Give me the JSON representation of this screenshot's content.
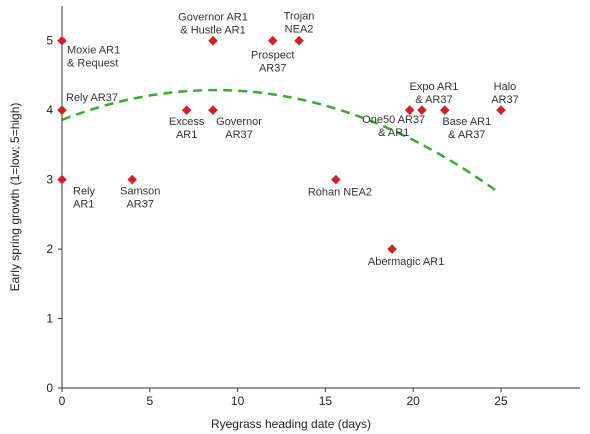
{
  "chart_data": {
    "type": "scatter",
    "xlabel": "Ryegrass heading date (days)",
    "ylabel": "Early spring growth (1=low; 5=high)",
    "xlim": [
      0,
      29.5
    ],
    "ylim": [
      0,
      5.5
    ],
    "xticks": [
      0,
      5,
      10,
      15,
      20,
      25
    ],
    "yticks": [
      0,
      1,
      2,
      3,
      4,
      5
    ],
    "grid": false,
    "marker_color": "#cc2229",
    "trend_color": "#3aaa35",
    "points": [
      {
        "x": 0,
        "y": 5,
        "label": [
          "Moxie AR1",
          "& Request"
        ]
      },
      {
        "x": 0,
        "y": 4,
        "label": [
          "Rely AR37"
        ]
      },
      {
        "x": 0,
        "y": 3,
        "label": [
          "Rely",
          "AR1"
        ]
      },
      {
        "x": 4,
        "y": 3,
        "label": [
          "Samson",
          "AR37"
        ]
      },
      {
        "x": 7.1,
        "y": 4,
        "label": [
          "Excess",
          "AR1"
        ]
      },
      {
        "x": 8.6,
        "y": 5,
        "label": [
          "Governor AR1",
          "& Hustle AR1"
        ]
      },
      {
        "x": 8.6,
        "y": 4,
        "label": [
          "Governor",
          "AR37"
        ]
      },
      {
        "x": 12,
        "y": 5,
        "label": [
          "Prospect",
          "AR37"
        ]
      },
      {
        "x": 13.5,
        "y": 5,
        "label": [
          "Trojan",
          "NEA2"
        ]
      },
      {
        "x": 15.6,
        "y": 3,
        "label": [
          "Rohan NEA2"
        ]
      },
      {
        "x": 18.8,
        "y": 2,
        "label": [
          "Abermagic AR1"
        ]
      },
      {
        "x": 19.8,
        "y": 4,
        "label": [
          "One50 AR37",
          "& AR1"
        ]
      },
      {
        "x": 20.5,
        "y": 4,
        "label": [
          "Expo AR1",
          "& AR37"
        ]
      },
      {
        "x": 21.8,
        "y": 4,
        "label": [
          "Base AR1",
          "& AR37"
        ]
      },
      {
        "x": 25,
        "y": 4,
        "label": [
          "Halo",
          "AR37"
        ]
      }
    ],
    "trendline": {
      "style": "dashed",
      "x_range": [
        0,
        24.8
      ],
      "coefficients": [
        3.86,
        0.0985,
        -0.00565
      ]
    }
  }
}
